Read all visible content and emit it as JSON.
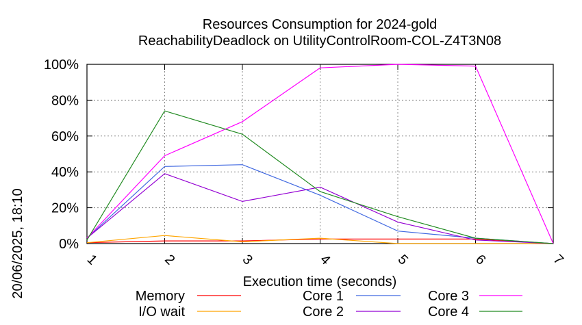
{
  "chart_data": {
    "type": "line",
    "title": "Resources Consumption for 2024-gold",
    "subtitle": "ReachabilityDeadlock on UtilityControlRoom-COL-Z4T3N08",
    "xlabel": "Execution time (seconds)",
    "ylabel": "",
    "side_label": "20/06/2025, 18:10",
    "xlim": [
      1,
      7
    ],
    "ylim": [
      0,
      100
    ],
    "x_ticks": [
      "1",
      "2",
      "3",
      "4",
      "5",
      "6",
      "7"
    ],
    "y_ticks": [
      "0%",
      "20%",
      "40%",
      "60%",
      "80%",
      "100%"
    ],
    "grid": true,
    "legend_position": "bottom",
    "x": [
      1,
      2,
      3,
      4,
      5,
      6,
      7
    ],
    "series": [
      {
        "name": "Memory",
        "color": "#ff0000",
        "values": [
          0.5,
          1.5,
          1.5,
          2.5,
          2.5,
          2.5,
          0
        ]
      },
      {
        "name": "I/O wait",
        "color": "#ffa500",
        "values": [
          0.5,
          4.5,
          1,
          3,
          0,
          0,
          0
        ]
      },
      {
        "name": "Core 1",
        "color": "#4169e1",
        "values": [
          3,
          43,
          44,
          27,
          7,
          3,
          0
        ]
      },
      {
        "name": "Core 2",
        "color": "#9400d3",
        "values": [
          3,
          39,
          23.5,
          31.5,
          12,
          2,
          0
        ]
      },
      {
        "name": "Core 3",
        "color": "#ff00ff",
        "values": [
          3,
          49,
          68,
          98,
          100,
          99,
          0
        ]
      },
      {
        "name": "Core 4",
        "color": "#228b22",
        "values": [
          2,
          74,
          61,
          29,
          15,
          3,
          0
        ]
      }
    ]
  }
}
